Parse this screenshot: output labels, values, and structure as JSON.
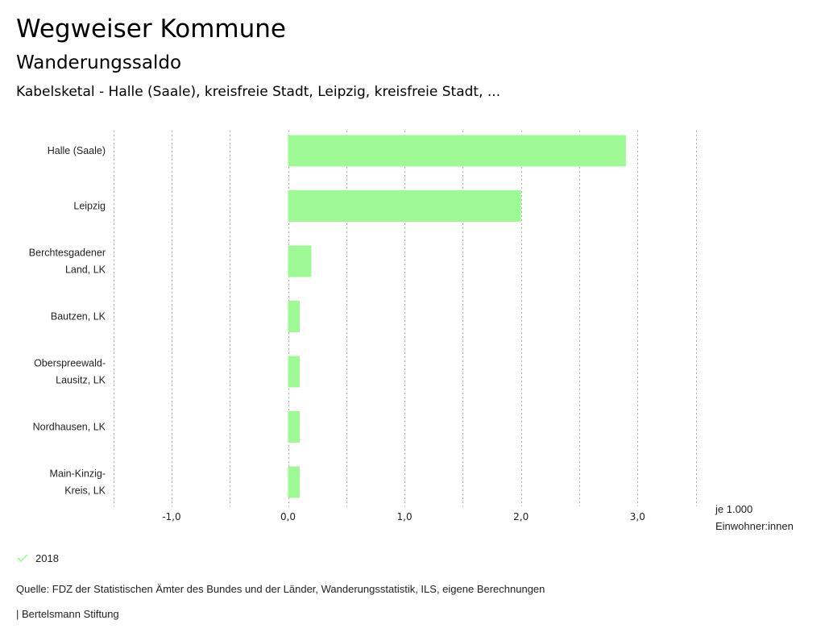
{
  "header": {
    "title": "Wegweiser Kommune",
    "subtitle": "Wanderungssaldo",
    "selection": "Kabelsketal - Halle (Saale), kreisfreie Stadt, Leipzig, kreisfreie Stadt, ..."
  },
  "chart_data": {
    "type": "bar",
    "orientation": "horizontal",
    "title": "Wanderungssaldo",
    "categories": [
      [
        "Halle (Saale)"
      ],
      [
        "Leipzig"
      ],
      [
        "Berchtesgadener",
        "Land, LK"
      ],
      [
        "Bautzen, LK"
      ],
      [
        "Oberspreewald-",
        "Lausitz, LK"
      ],
      [
        "Nordhausen, LK"
      ],
      [
        "Main-Kinzig-",
        "Kreis, LK"
      ]
    ],
    "series": [
      {
        "name": "2018",
        "color": "#9cf994",
        "values": [
          2.9,
          2.0,
          0.2,
          0.1,
          0.1,
          0.1,
          0.1
        ]
      }
    ],
    "xlim": [
      -1.5,
      3.5
    ],
    "grid_step": 0.5,
    "xticks": [
      {
        "value": -1.0,
        "label": "-1,0"
      },
      {
        "value": 0.0,
        "label": "0,0"
      },
      {
        "value": 1.0,
        "label": "1,0"
      },
      {
        "value": 2.0,
        "label": "2,0"
      },
      {
        "value": 3.0,
        "label": "3,0"
      }
    ],
    "xlabel": [
      "je 1.000",
      "Einwohner:innen"
    ],
    "ylabel": "",
    "grid": true,
    "legend_position": "bottom-left",
    "gridline_color": "#aaaaaa"
  },
  "legend": {
    "label": "2018",
    "color": "#9cf994"
  },
  "footer": {
    "source": "Quelle: FDZ der Statistischen Ämter des Bundes und der Länder, Wanderungsstatistik, ILS, eigene Berechnungen",
    "publisher": "| Bertelsmann Stiftung"
  }
}
